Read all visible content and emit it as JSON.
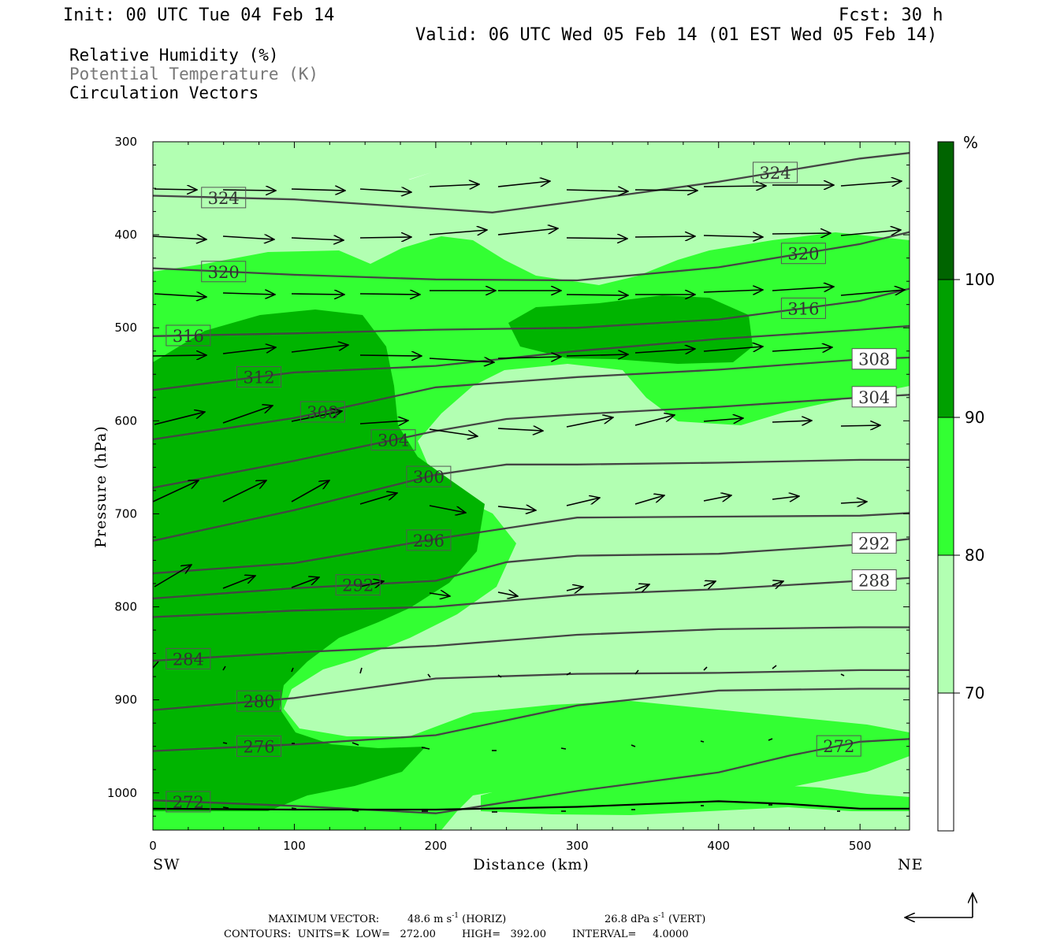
{
  "header": {
    "init": "Init: 00 UTC Tue 04 Feb 14",
    "fcst": "Fcst:   30 h",
    "valid": "Valid: 06 UTC Wed 05 Feb 14 (01 EST Wed 05 Feb 14)",
    "field1": "Relative Humidity (%)",
    "field2": "Potential Temperature (K)",
    "field3": "Circulation Vectors"
  },
  "axes": {
    "xlabel": "Distance (km)",
    "ylabel": "Pressure (hPa)",
    "left_end": "SW",
    "right_end": "NE"
  },
  "colorbar": {
    "unit": "%",
    "ticks": [
      "100",
      "90",
      "80",
      "70"
    ],
    "colors": [
      "#006400",
      "#00a000",
      "#33ff33",
      "#b2ffb2",
      "#ffffff"
    ]
  },
  "footer": {
    "max_label": "MAXIMUM VECTOR:",
    "horiz_value": "48.6 m s",
    "horiz_suffix": " (HORIZ)",
    "vert_value": "26.8 dPa s",
    "vert_suffix": " (VERT)",
    "exponent": "-1",
    "contours": "CONTOURS:  UNITS=K  LOW=   272.00        HIGH=   392.00        INTERVAL=     4.0000"
  },
  "chart_data": {
    "type": "heatmap",
    "x_ticks": [
      0,
      100,
      200,
      300,
      400,
      500
    ],
    "y_ticks": [
      300,
      400,
      500,
      600,
      700,
      800,
      900,
      1000
    ],
    "xlim": [
      0,
      535
    ],
    "ylim": [
      300,
      1040
    ],
    "shading_levels_pct": [
      70,
      80,
      90,
      100
    ],
    "isentropes": [
      {
        "theta": 324,
        "label": "324",
        "pts": [
          [
            0,
            358
          ],
          [
            100,
            362
          ],
          [
            200,
            372
          ],
          [
            240,
            376
          ],
          [
            300,
            364
          ],
          [
            400,
            343
          ],
          [
            500,
            318
          ],
          [
            535,
            312
          ]
        ]
      },
      {
        "theta": 320,
        "label": "320",
        "pts": [
          [
            0,
            436
          ],
          [
            100,
            443
          ],
          [
            200,
            448
          ],
          [
            300,
            449
          ],
          [
            400,
            435
          ],
          [
            500,
            410
          ],
          [
            535,
            397
          ]
        ]
      },
      {
        "theta": 316,
        "label": "316",
        "pts": [
          [
            0,
            509
          ],
          [
            100,
            506
          ],
          [
            200,
            502
          ],
          [
            300,
            500
          ],
          [
            400,
            491
          ],
          [
            500,
            471
          ],
          [
            535,
            458
          ]
        ]
      },
      {
        "theta": 312,
        "label": "312",
        "pts": [
          [
            0,
            567
          ],
          [
            100,
            548
          ],
          [
            200,
            541
          ],
          [
            300,
            525
          ],
          [
            400,
            512
          ],
          [
            500,
            502
          ],
          [
            535,
            498
          ]
        ]
      },
      {
        "theta": 308,
        "label": "308",
        "pts": [
          [
            0,
            620
          ],
          [
            100,
            597
          ],
          [
            200,
            564
          ],
          [
            300,
            553
          ],
          [
            400,
            545
          ],
          [
            500,
            534
          ],
          [
            535,
            532
          ]
        ]
      },
      {
        "theta": 304,
        "label": "304",
        "pts": [
          [
            0,
            672
          ],
          [
            100,
            643
          ],
          [
            200,
            611
          ],
          [
            250,
            598
          ],
          [
            300,
            593
          ],
          [
            400,
            585
          ],
          [
            500,
            575
          ],
          [
            535,
            572
          ]
        ]
      },
      {
        "theta": 300,
        "label": "300",
        "pts": [
          [
            0,
            729
          ],
          [
            100,
            696
          ],
          [
            200,
            658
          ],
          [
            250,
            647
          ],
          [
            300,
            647
          ],
          [
            400,
            645
          ],
          [
            500,
            642
          ],
          [
            535,
            642
          ]
        ]
      },
      {
        "theta": 296,
        "label": "296",
        "pts": [
          [
            0,
            764
          ],
          [
            100,
            753
          ],
          [
            200,
            727
          ],
          [
            300,
            704
          ],
          [
            400,
            703
          ],
          [
            500,
            702
          ],
          [
            535,
            699
          ]
        ]
      },
      {
        "theta": 292,
        "label": "292",
        "pts": [
          [
            0,
            791
          ],
          [
            100,
            780
          ],
          [
            200,
            772
          ],
          [
            250,
            752
          ],
          [
            300,
            745
          ],
          [
            400,
            743
          ],
          [
            500,
            733
          ],
          [
            535,
            727
          ]
        ]
      },
      {
        "theta": 288,
        "label": "288",
        "pts": [
          [
            0,
            811
          ],
          [
            100,
            804
          ],
          [
            200,
            800
          ],
          [
            300,
            787
          ],
          [
            400,
            781
          ],
          [
            500,
            772
          ],
          [
            535,
            769
          ]
        ]
      },
      {
        "theta": 284,
        "label": "284",
        "pts": [
          [
            0,
            858
          ],
          [
            100,
            849
          ],
          [
            200,
            842
          ],
          [
            300,
            830
          ],
          [
            400,
            824
          ],
          [
            500,
            822
          ],
          [
            535,
            822
          ]
        ]
      },
      {
        "theta": 280,
        "label": "280",
        "pts": [
          [
            0,
            911
          ],
          [
            100,
            898
          ],
          [
            200,
            877
          ],
          [
            300,
            872
          ],
          [
            400,
            871
          ],
          [
            500,
            868
          ],
          [
            535,
            868
          ]
        ]
      },
      {
        "theta": 276,
        "label": "276",
        "pts": [
          [
            0,
            955
          ],
          [
            100,
            948
          ],
          [
            200,
            938
          ],
          [
            300,
            906
          ],
          [
            400,
            890
          ],
          [
            500,
            888
          ],
          [
            535,
            888
          ]
        ]
      },
      {
        "theta": 272,
        "label": "272",
        "pts": [
          [
            0,
            1008
          ],
          [
            100,
            1014
          ],
          [
            200,
            1022
          ],
          [
            300,
            998
          ],
          [
            400,
            978
          ],
          [
            450,
            960
          ],
          [
            500,
            945
          ],
          [
            535,
            942
          ]
        ]
      }
    ],
    "surface": [
      [
        0,
        1017
      ],
      [
        100,
        1018
      ],
      [
        200,
        1018
      ],
      [
        300,
        1015
      ],
      [
        400,
        1009
      ],
      [
        450,
        1012
      ],
      [
        500,
        1017
      ],
      [
        535,
        1017
      ]
    ]
  }
}
